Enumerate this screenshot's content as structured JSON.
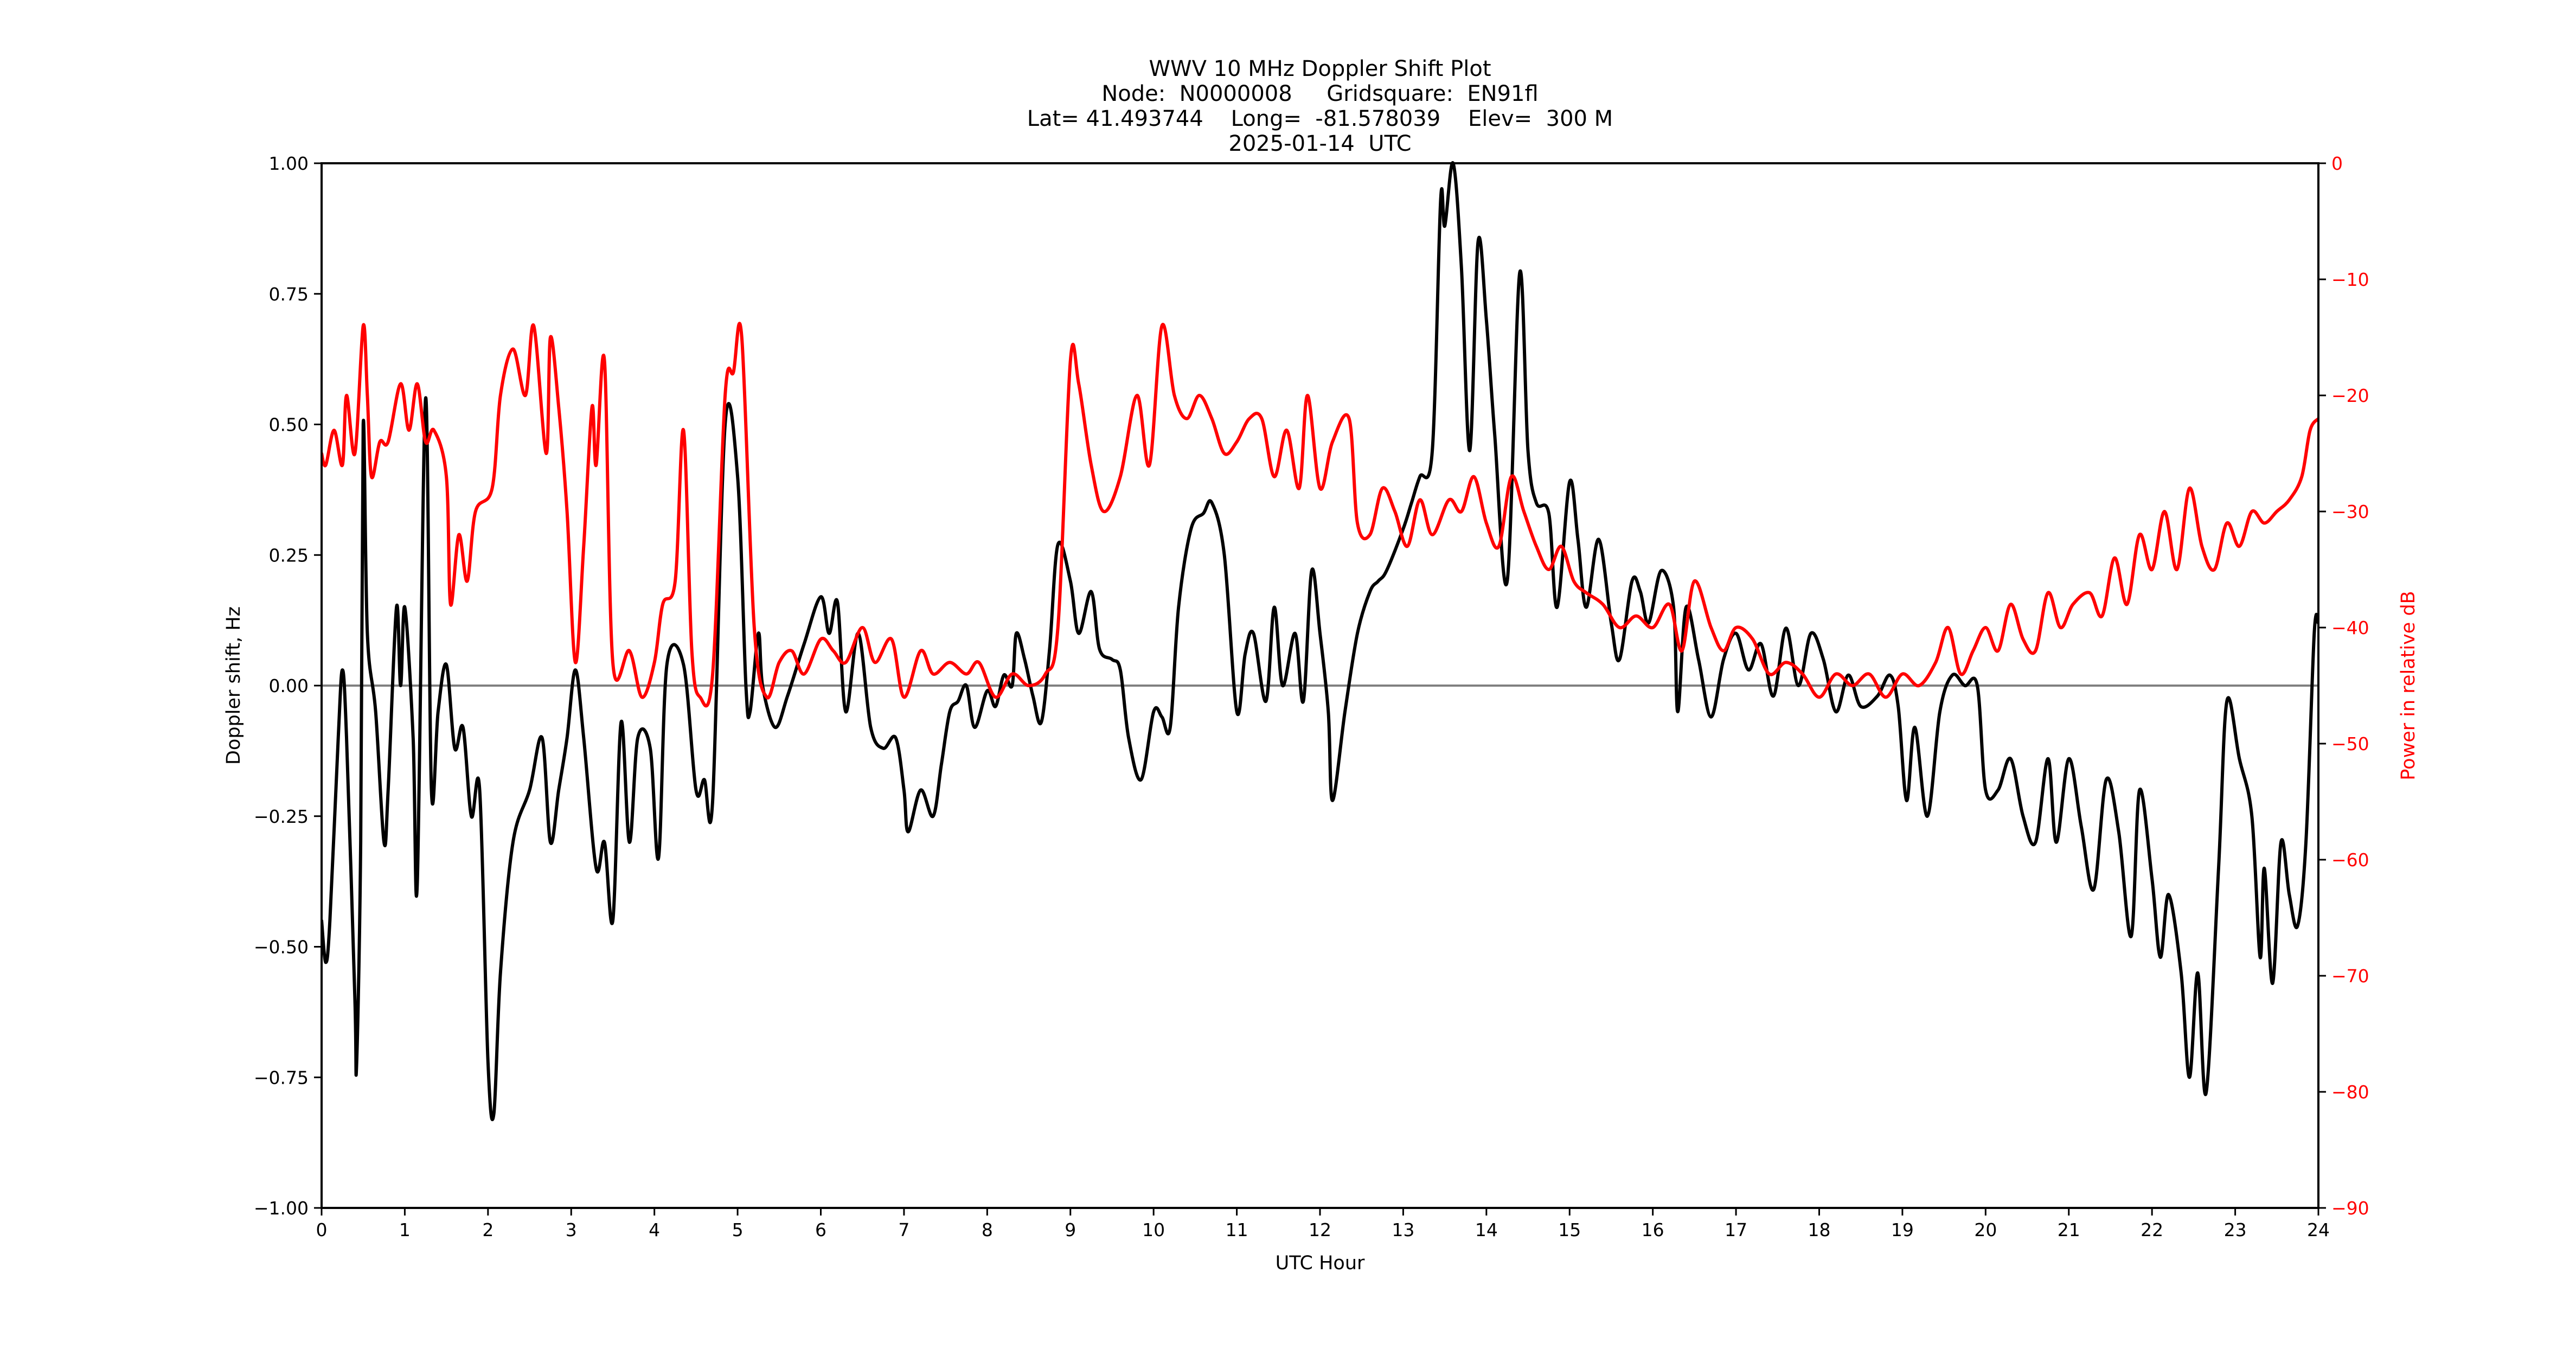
{
  "chart_data": {
    "type": "line",
    "title": "WWV 10 MHz Doppler Shift Plot",
    "subtitle_lines": [
      "Node:  N0000008     Gridsquare:  EN91fl",
      "Lat= 41.493744    Long=  -81.578039    Elev=  300 M",
      "2025-01-14  UTC"
    ],
    "xlabel": "UTC Hour",
    "ylabel": "Doppler shift, Hz",
    "y2label": "Power in relative dB",
    "xlim": [
      0,
      24
    ],
    "ylim": [
      -1.0,
      1.0
    ],
    "y2lim": [
      -90,
      0
    ],
    "x_ticks": [
      0,
      1,
      2,
      3,
      4,
      5,
      6,
      7,
      8,
      9,
      10,
      11,
      12,
      13,
      14,
      15,
      16,
      17,
      18,
      19,
      20,
      21,
      22,
      23,
      24
    ],
    "y_ticks": [
      "1.00",
      "0.75",
      "0.50",
      "0.25",
      "0.00",
      "−0.25",
      "−0.50",
      "−0.75",
      "−1.00"
    ],
    "y_tick_values": [
      1.0,
      0.75,
      0.5,
      0.25,
      0.0,
      -0.25,
      -0.5,
      -0.75,
      -1.0
    ],
    "y2_ticks": [
      "0",
      "−10",
      "−20",
      "−30",
      "−40",
      "−50",
      "−60",
      "−70",
      "−80",
      "−90"
    ],
    "y2_tick_values": [
      0,
      -10,
      -20,
      -30,
      -40,
      -50,
      -60,
      -70,
      -80,
      -90
    ],
    "grid": false,
    "zero_line": true,
    "legend": null,
    "colors": {
      "doppler": "#000000",
      "power": "#ff0000",
      "zero_line": "#808080",
      "axis2": "#ff0000"
    },
    "series": [
      {
        "name": "Doppler shift (Hz)",
        "axis": "left",
        "color": "#000000",
        "x": [
          0.0,
          0.05,
          0.1,
          0.2,
          0.25,
          0.3,
          0.4,
          0.42,
          0.47,
          0.5,
          0.55,
          0.65,
          0.75,
          0.8,
          0.9,
          0.95,
          1.0,
          1.1,
          1.15,
          1.25,
          1.32,
          1.4,
          1.5,
          1.6,
          1.7,
          1.8,
          1.9,
          2.0,
          2.07,
          2.15,
          2.3,
          2.5,
          2.65,
          2.75,
          2.85,
          2.95,
          3.05,
          3.15,
          3.3,
          3.4,
          3.5,
          3.6,
          3.7,
          3.8,
          3.95,
          4.05,
          4.15,
          4.35,
          4.5,
          4.6,
          4.7,
          4.85,
          5.0,
          5.1,
          5.15,
          5.25,
          5.3,
          5.45,
          5.6,
          5.8,
          6.0,
          6.1,
          6.2,
          6.3,
          6.45,
          6.6,
          6.75,
          6.9,
          7.0,
          7.05,
          7.2,
          7.35,
          7.45,
          7.55,
          7.65,
          7.75,
          7.85,
          8.0,
          8.1,
          8.2,
          8.3,
          8.35,
          8.45,
          8.55,
          8.65,
          8.75,
          8.85,
          9.0,
          9.1,
          9.25,
          9.35,
          9.5,
          9.6,
          9.7,
          9.85,
          10.0,
          10.1,
          10.2,
          10.3,
          10.45,
          10.6,
          10.7,
          10.85,
          11.0,
          11.1,
          11.2,
          11.35,
          11.45,
          11.55,
          11.7,
          11.8,
          11.9,
          12.0,
          12.1,
          12.15,
          12.3,
          12.45,
          12.6,
          12.7,
          12.8,
          13.0,
          13.1,
          13.2,
          13.35,
          13.45,
          13.5,
          13.6,
          13.7,
          13.8,
          13.9,
          14.0,
          14.1,
          14.25,
          14.4,
          14.5,
          14.6,
          14.75,
          14.85,
          15.0,
          15.1,
          15.2,
          15.35,
          15.5,
          15.6,
          15.75,
          15.85,
          15.95,
          16.1,
          16.25,
          16.3,
          16.4,
          16.55,
          16.7,
          16.85,
          17.0,
          17.15,
          17.3,
          17.45,
          17.6,
          17.75,
          17.9,
          18.05,
          18.2,
          18.35,
          18.5,
          18.7,
          18.85,
          18.95,
          19.05,
          19.15,
          19.3,
          19.45,
          19.6,
          19.75,
          19.9,
          20.0,
          20.15,
          20.3,
          20.45,
          20.6,
          20.75,
          20.85,
          21.0,
          21.15,
          21.3,
          21.45,
          21.6,
          21.75,
          21.85,
          22.0,
          22.1,
          22.2,
          22.35,
          22.45,
          22.55,
          22.65,
          22.8,
          22.9,
          23.05,
          23.2,
          23.3,
          23.35,
          23.45,
          23.55,
          23.65,
          23.75,
          23.85,
          23.95,
          24.0
        ],
        "values": [
          -0.45,
          -0.53,
          -0.45,
          -0.1,
          0.03,
          -0.1,
          -0.6,
          -0.73,
          -0.3,
          0.5,
          0.1,
          -0.05,
          -0.3,
          -0.2,
          0.15,
          0.0,
          0.15,
          -0.1,
          -0.38,
          0.55,
          -0.2,
          -0.05,
          0.04,
          -0.12,
          -0.08,
          -0.25,
          -0.2,
          -0.72,
          -0.82,
          -0.55,
          -0.3,
          -0.2,
          -0.1,
          -0.3,
          -0.2,
          -0.1,
          0.03,
          -0.1,
          -0.35,
          -0.3,
          -0.45,
          -0.07,
          -0.3,
          -0.1,
          -0.12,
          -0.33,
          0.04,
          0.04,
          -0.2,
          -0.18,
          -0.22,
          0.5,
          0.4,
          0.0,
          -0.05,
          0.1,
          0.0,
          -0.08,
          -0.02,
          0.08,
          0.17,
          0.1,
          0.16,
          -0.05,
          0.1,
          -0.08,
          -0.12,
          -0.1,
          -0.2,
          -0.28,
          -0.2,
          -0.25,
          -0.15,
          -0.05,
          -0.03,
          0.0,
          -0.08,
          -0.01,
          -0.04,
          0.02,
          0.0,
          0.1,
          0.05,
          -0.02,
          -0.07,
          0.07,
          0.27,
          0.2,
          0.1,
          0.18,
          0.07,
          0.05,
          0.03,
          -0.1,
          -0.18,
          -0.05,
          -0.06,
          -0.08,
          0.15,
          0.3,
          0.33,
          0.35,
          0.25,
          -0.05,
          0.06,
          0.1,
          -0.03,
          0.15,
          0.0,
          0.1,
          -0.03,
          0.22,
          0.1,
          -0.05,
          -0.22,
          -0.05,
          0.1,
          0.18,
          0.2,
          0.22,
          0.3,
          0.35,
          0.4,
          0.45,
          0.93,
          0.88,
          1.0,
          0.8,
          0.45,
          0.85,
          0.7,
          0.48,
          0.2,
          0.79,
          0.45,
          0.35,
          0.33,
          0.15,
          0.39,
          0.28,
          0.15,
          0.28,
          0.12,
          0.05,
          0.2,
          0.18,
          0.12,
          0.22,
          0.15,
          -0.05,
          0.15,
          0.05,
          -0.06,
          0.05,
          0.1,
          0.03,
          0.08,
          -0.02,
          0.11,
          0.0,
          0.1,
          0.05,
          -0.05,
          0.02,
          -0.04,
          -0.02,
          0.02,
          -0.04,
          -0.22,
          -0.08,
          -0.25,
          -0.05,
          0.02,
          0.0,
          0.0,
          -0.2,
          -0.2,
          -0.14,
          -0.25,
          -0.3,
          -0.14,
          -0.3,
          -0.14,
          -0.27,
          -0.39,
          -0.18,
          -0.28,
          -0.48,
          -0.2,
          -0.37,
          -0.52,
          -0.4,
          -0.55,
          -0.75,
          -0.55,
          -0.78,
          -0.35,
          -0.03,
          -0.14,
          -0.25,
          -0.52,
          -0.35,
          -0.57,
          -0.3,
          -0.4,
          -0.46,
          -0.3,
          0.1,
          0.12
        ]
      },
      {
        "name": "Power (relative dB)",
        "axis": "right",
        "color": "#ff0000",
        "x": [
          0.0,
          0.05,
          0.15,
          0.25,
          0.3,
          0.4,
          0.5,
          0.55,
          0.6,
          0.7,
          0.8,
          0.95,
          1.05,
          1.15,
          1.25,
          1.35,
          1.5,
          1.55,
          1.65,
          1.75,
          1.85,
          2.05,
          2.15,
          2.3,
          2.45,
          2.55,
          2.7,
          2.75,
          2.85,
          2.95,
          3.05,
          3.15,
          3.25,
          3.3,
          3.4,
          3.5,
          3.7,
          3.85,
          4.0,
          4.1,
          4.25,
          4.35,
          4.45,
          4.55,
          4.7,
          4.85,
          4.95,
          5.05,
          5.2,
          5.35,
          5.5,
          5.65,
          5.8,
          6.0,
          6.15,
          6.3,
          6.5,
          6.65,
          6.85,
          7.0,
          7.2,
          7.35,
          7.55,
          7.75,
          7.9,
          8.1,
          8.3,
          8.5,
          8.7,
          8.85,
          9.0,
          9.1,
          9.25,
          9.4,
          9.6,
          9.8,
          9.95,
          10.1,
          10.25,
          10.4,
          10.55,
          10.7,
          10.85,
          11.0,
          11.15,
          11.3,
          11.45,
          11.6,
          11.75,
          11.85,
          12.0,
          12.15,
          12.35,
          12.45,
          12.6,
          12.75,
          12.9,
          13.05,
          13.2,
          13.35,
          13.55,
          13.7,
          13.85,
          14.0,
          14.15,
          14.3,
          14.45,
          14.6,
          14.75,
          14.9,
          15.05,
          15.2,
          15.4,
          15.6,
          15.8,
          16.0,
          16.2,
          16.35,
          16.5,
          16.7,
          16.85,
          17.0,
          17.2,
          17.4,
          17.6,
          17.8,
          18.0,
          18.2,
          18.4,
          18.6,
          18.8,
          19.0,
          19.2,
          19.4,
          19.55,
          19.7,
          19.85,
          20.0,
          20.15,
          20.3,
          20.45,
          20.6,
          20.75,
          20.9,
          21.05,
          21.25,
          21.4,
          21.55,
          21.7,
          21.85,
          22.0,
          22.15,
          22.3,
          22.45,
          22.6,
          22.75,
          22.9,
          23.05,
          23.2,
          23.35,
          23.5,
          23.65,
          23.8,
          23.9,
          24.0
        ],
        "values": [
          -25,
          -26,
          -23,
          -26,
          -20,
          -25,
          -14,
          -20,
          -27,
          -24,
          -24,
          -19,
          -23,
          -19,
          -24,
          -23,
          -27,
          -38,
          -32,
          -36,
          -30,
          -28,
          -20,
          -16,
          -20,
          -14,
          -25,
          -15,
          -21,
          -30,
          -43,
          -33,
          -21,
          -26,
          -17,
          -43,
          -42,
          -46,
          -43,
          -38,
          -36,
          -23,
          -42,
          -46,
          -44,
          -20,
          -18,
          -15,
          -40,
          -46,
          -43,
          -42,
          -44,
          -41,
          -42,
          -43,
          -40,
          -43,
          -41,
          -46,
          -42,
          -44,
          -43,
          -44,
          -43,
          -46,
          -44,
          -45,
          -44,
          -40,
          -17,
          -19,
          -26,
          -30,
          -27,
          -20,
          -26,
          -14,
          -20,
          -22,
          -20,
          -22,
          -25,
          -24,
          -22,
          -22,
          -27,
          -23,
          -28,
          -20,
          -28,
          -24,
          -22,
          -31,
          -32,
          -28,
          -30,
          -33,
          -29,
          -32,
          -29,
          -30,
          -27,
          -31,
          -33,
          -27,
          -30,
          -33,
          -35,
          -33,
          -36,
          -37,
          -38,
          -40,
          -39,
          -40,
          -38,
          -42,
          -36,
          -40,
          -42,
          -40,
          -41,
          -44,
          -43,
          -44,
          -46,
          -44,
          -45,
          -44,
          -46,
          -44,
          -45,
          -43,
          -40,
          -44,
          -42,
          -40,
          -42,
          -38,
          -41,
          -42,
          -37,
          -40,
          -38,
          -37,
          -39,
          -34,
          -38,
          -32,
          -35,
          -30,
          -35,
          -28,
          -33,
          -35,
          -31,
          -33,
          -30,
          -31,
          -30,
          -29,
          -27,
          -23,
          -22
        ]
      }
    ]
  }
}
